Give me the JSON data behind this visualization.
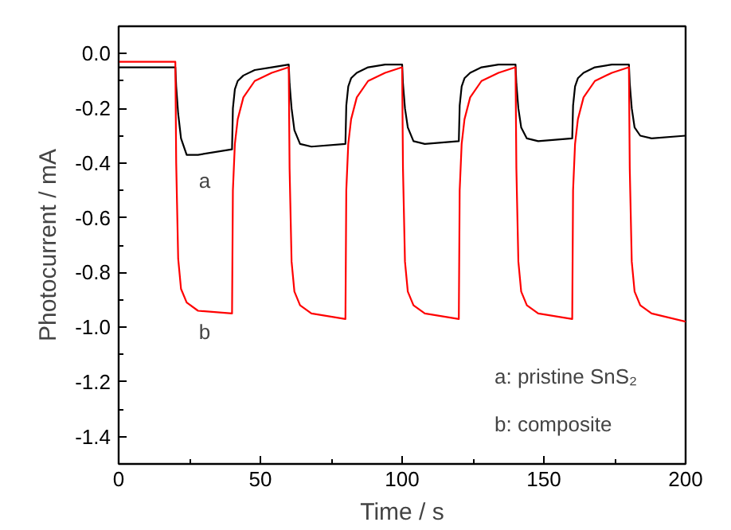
{
  "chart_data": {
    "type": "line",
    "xlabel": "Time / s",
    "ylabel": "Photocurrent / mA",
    "x": [
      0,
      20,
      20.3,
      21,
      22,
      24,
      28,
      40,
      40.3,
      41,
      42,
      44,
      48,
      54,
      60,
      60.3,
      61,
      62,
      64,
      68,
      80,
      80.3,
      81,
      82,
      84,
      88,
      94,
      100,
      100.3,
      101,
      102,
      104,
      108,
      120,
      120.3,
      121,
      122,
      124,
      128,
      134,
      140,
      140.3,
      141,
      142,
      144,
      148,
      160,
      160.3,
      161,
      162,
      164,
      168,
      174,
      180,
      180.3,
      181,
      182,
      184,
      188,
      200
    ],
    "series": [
      {
        "color": "#000000",
        "values": [
          -0.05,
          -0.05,
          -0.12,
          -0.22,
          -0.31,
          -0.37,
          -0.37,
          -0.35,
          -0.2,
          -0.13,
          -0.1,
          -0.08,
          -0.06,
          -0.05,
          -0.04,
          -0.11,
          -0.2,
          -0.28,
          -0.33,
          -0.34,
          -0.33,
          -0.19,
          -0.12,
          -0.09,
          -0.07,
          -0.05,
          -0.04,
          -0.04,
          -0.11,
          -0.2,
          -0.27,
          -0.32,
          -0.33,
          -0.32,
          -0.19,
          -0.12,
          -0.09,
          -0.07,
          -0.05,
          -0.04,
          -0.04,
          -0.11,
          -0.2,
          -0.27,
          -0.31,
          -0.32,
          -0.31,
          -0.19,
          -0.12,
          -0.09,
          -0.07,
          -0.05,
          -0.04,
          -0.04,
          -0.11,
          -0.2,
          -0.27,
          -0.3,
          -0.31,
          -0.3
        ]
      },
      {
        "color": "#ff0000",
        "values": [
          -0.03,
          -0.03,
          -0.4,
          -0.75,
          -0.86,
          -0.91,
          -0.94,
          -0.95,
          -0.5,
          -0.33,
          -0.24,
          -0.16,
          -0.1,
          -0.07,
          -0.05,
          -0.42,
          -0.76,
          -0.87,
          -0.92,
          -0.95,
          -0.97,
          -0.5,
          -0.33,
          -0.24,
          -0.16,
          -0.1,
          -0.07,
          -0.05,
          -0.42,
          -0.76,
          -0.87,
          -0.92,
          -0.95,
          -0.97,
          -0.5,
          -0.33,
          -0.24,
          -0.16,
          -0.1,
          -0.07,
          -0.05,
          -0.42,
          -0.76,
          -0.87,
          -0.92,
          -0.95,
          -0.97,
          -0.5,
          -0.33,
          -0.24,
          -0.16,
          -0.1,
          -0.07,
          -0.05,
          -0.42,
          -0.76,
          -0.87,
          -0.92,
          -0.95,
          -0.98
        ]
      }
    ],
    "xlim": [
      0,
      200
    ],
    "ylim": [
      -1.5,
      0.1
    ],
    "xticks": [
      0,
      {
        "value": 25,
        "label": null
      },
      50,
      {
        "value": 75,
        "label": null
      },
      100,
      {
        "value": 125,
        "label": null
      },
      150,
      {
        "value": 175,
        "label": null
      },
      200
    ],
    "yticks": [
      {
        "value": 0,
        "label": "0.0"
      },
      {
        "value": -0.1,
        "label": null
      },
      -0.2,
      {
        "value": -0.3,
        "label": null
      },
      -0.4,
      {
        "value": -0.5,
        "label": null
      },
      -0.6,
      {
        "value": -0.7,
        "label": null
      },
      -0.8,
      {
        "value": -0.9,
        "label": null
      },
      {
        "value": -1.0,
        "label": "-1.0"
      },
      {
        "value": -1.1,
        "label": null
      },
      -1.2,
      {
        "value": -1.3,
        "label": null
      },
      -1.4
    ],
    "annotations": [
      "a",
      "b",
      "a: pristine SnS₂",
      "b: composite"
    ],
    "grid": false,
    "line_style": "solid",
    "marker": "none"
  }
}
